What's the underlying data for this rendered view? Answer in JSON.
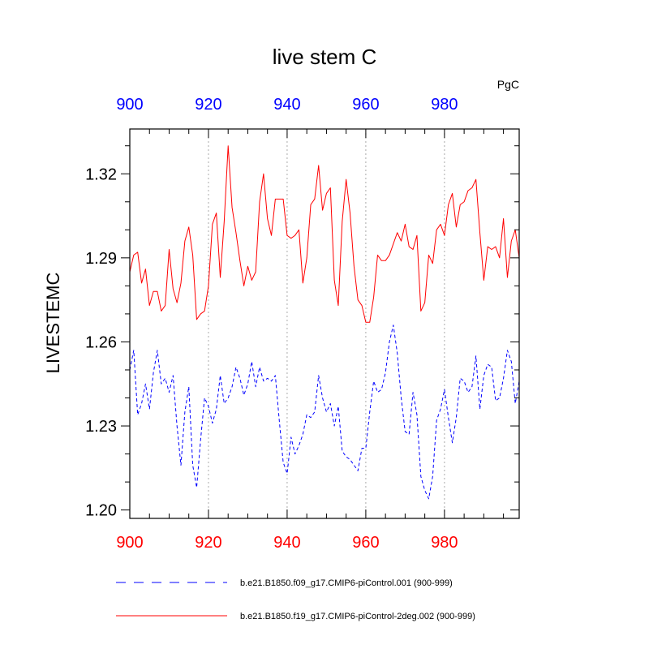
{
  "chart_data": {
    "type": "line",
    "title": "live stem C",
    "units": "PgC",
    "xlabel": "",
    "ylabel": "LIVESTEMC",
    "xlim": [
      900,
      999
    ],
    "ylim": [
      1.197,
      1.336
    ],
    "x_ticks": [
      900,
      920,
      940,
      960,
      980
    ],
    "x_tick_labels": [
      "900",
      "920",
      "940",
      "960",
      "980"
    ],
    "y_ticks": [
      1.2,
      1.23,
      1.26,
      1.29,
      1.32
    ],
    "y_tick_labels": [
      "1.20",
      "1.23",
      "1.26",
      "1.29",
      "1.32"
    ],
    "grid": "vertical dotted at major x ticks",
    "colors": {
      "bottom_axis_labels": "#ff0000",
      "top_axis_labels": "#0000ff",
      "grid": "#aaaaaa"
    },
    "x_start": 900,
    "series": [
      {
        "name": "b.e21.B1850.f09_g17.CMIP6-piControl.001 (900-999)",
        "color": "#0000ff",
        "dash": "dashed",
        "values": [
          1.25,
          1.257,
          1.234,
          1.238,
          1.245,
          1.236,
          1.249,
          1.257,
          1.245,
          1.247,
          1.242,
          1.248,
          1.23,
          1.216,
          1.235,
          1.244,
          1.216,
          1.208,
          1.225,
          1.24,
          1.237,
          1.231,
          1.236,
          1.248,
          1.238,
          1.24,
          1.244,
          1.251,
          1.247,
          1.241,
          1.245,
          1.253,
          1.244,
          1.251,
          1.246,
          1.247,
          1.246,
          1.248,
          1.232,
          1.217,
          1.213,
          1.226,
          1.22,
          1.223,
          1.227,
          1.234,
          1.233,
          1.235,
          1.248,
          1.24,
          1.235,
          1.238,
          1.23,
          1.237,
          1.221,
          1.219,
          1.218,
          1.216,
          1.214,
          1.222,
          1.222,
          1.235,
          1.246,
          1.242,
          1.243,
          1.249,
          1.26,
          1.266,
          1.256,
          1.24,
          1.228,
          1.227,
          1.242,
          1.234,
          1.212,
          1.207,
          1.204,
          1.212,
          1.232,
          1.236,
          1.243,
          1.233,
          1.224,
          1.233,
          1.247,
          1.246,
          1.242,
          1.244,
          1.255,
          1.236,
          1.248,
          1.252,
          1.251,
          1.239,
          1.24,
          1.247,
          1.257,
          1.253,
          1.238,
          1.246
        ]
      },
      {
        "name": "b.e21.B1850.f19_g17.CMIP6-piControl-2deg.002 (900-999)",
        "color": "#ff0000",
        "dash": "solid",
        "values": [
          1.285,
          1.291,
          1.292,
          1.281,
          1.286,
          1.273,
          1.278,
          1.278,
          1.271,
          1.273,
          1.293,
          1.279,
          1.274,
          1.281,
          1.296,
          1.301,
          1.291,
          1.268,
          1.27,
          1.271,
          1.28,
          1.302,
          1.306,
          1.283,
          1.303,
          1.33,
          1.308,
          1.299,
          1.289,
          1.28,
          1.287,
          1.282,
          1.285,
          1.31,
          1.32,
          1.304,
          1.298,
          1.311,
          1.311,
          1.311,
          1.298,
          1.297,
          1.298,
          1.3,
          1.281,
          1.29,
          1.309,
          1.311,
          1.323,
          1.307,
          1.313,
          1.315,
          1.282,
          1.273,
          1.303,
          1.318,
          1.306,
          1.287,
          1.275,
          1.273,
          1.267,
          1.267,
          1.276,
          1.291,
          1.289,
          1.289,
          1.291,
          1.295,
          1.299,
          1.296,
          1.302,
          1.294,
          1.293,
          1.298,
          1.271,
          1.274,
          1.291,
          1.288,
          1.3,
          1.302,
          1.298,
          1.309,
          1.313,
          1.301,
          1.309,
          1.31,
          1.314,
          1.315,
          1.318,
          1.299,
          1.282,
          1.294,
          1.293,
          1.294,
          1.29,
          1.304,
          1.283,
          1.296,
          1.3,
          1.29
        ]
      }
    ]
  }
}
